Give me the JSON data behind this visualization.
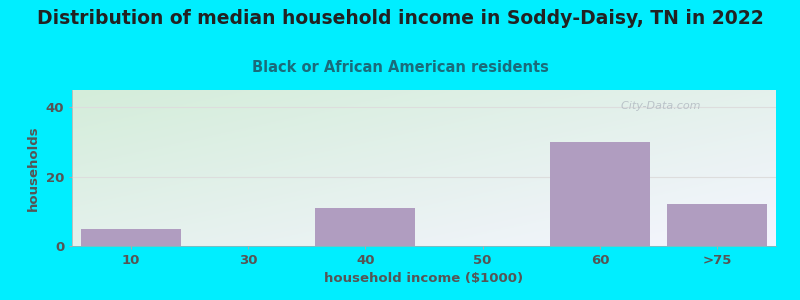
{
  "title": "Distribution of median household income in Soddy-Daisy, TN in 2022",
  "subtitle": "Black or African American residents",
  "xlabel": "household income ($1000)",
  "ylabel": "households",
  "categories": [
    "10",
    "30",
    "40",
    "50",
    "60",
    ">75"
  ],
  "values": [
    5,
    0,
    11,
    0,
    30,
    12
  ],
  "bar_color": "#b09dc0",
  "bg_color_topleft": "#d4edda",
  "bg_color_bottomright": "#f5f5ff",
  "outer_bg": "#00eeff",
  "title_color": "#222222",
  "subtitle_color": "#1a6b7a",
  "axis_label_color": "#555555",
  "tick_color": "#555555",
  "grid_color": "#dddddd",
  "ylim": [
    0,
    45
  ],
  "yticks": [
    0,
    20,
    40
  ],
  "title_fontsize": 13.5,
  "subtitle_fontsize": 10.5,
  "label_fontsize": 9.5,
  "tick_fontsize": 9.5,
  "watermark": "  City-Data.com"
}
